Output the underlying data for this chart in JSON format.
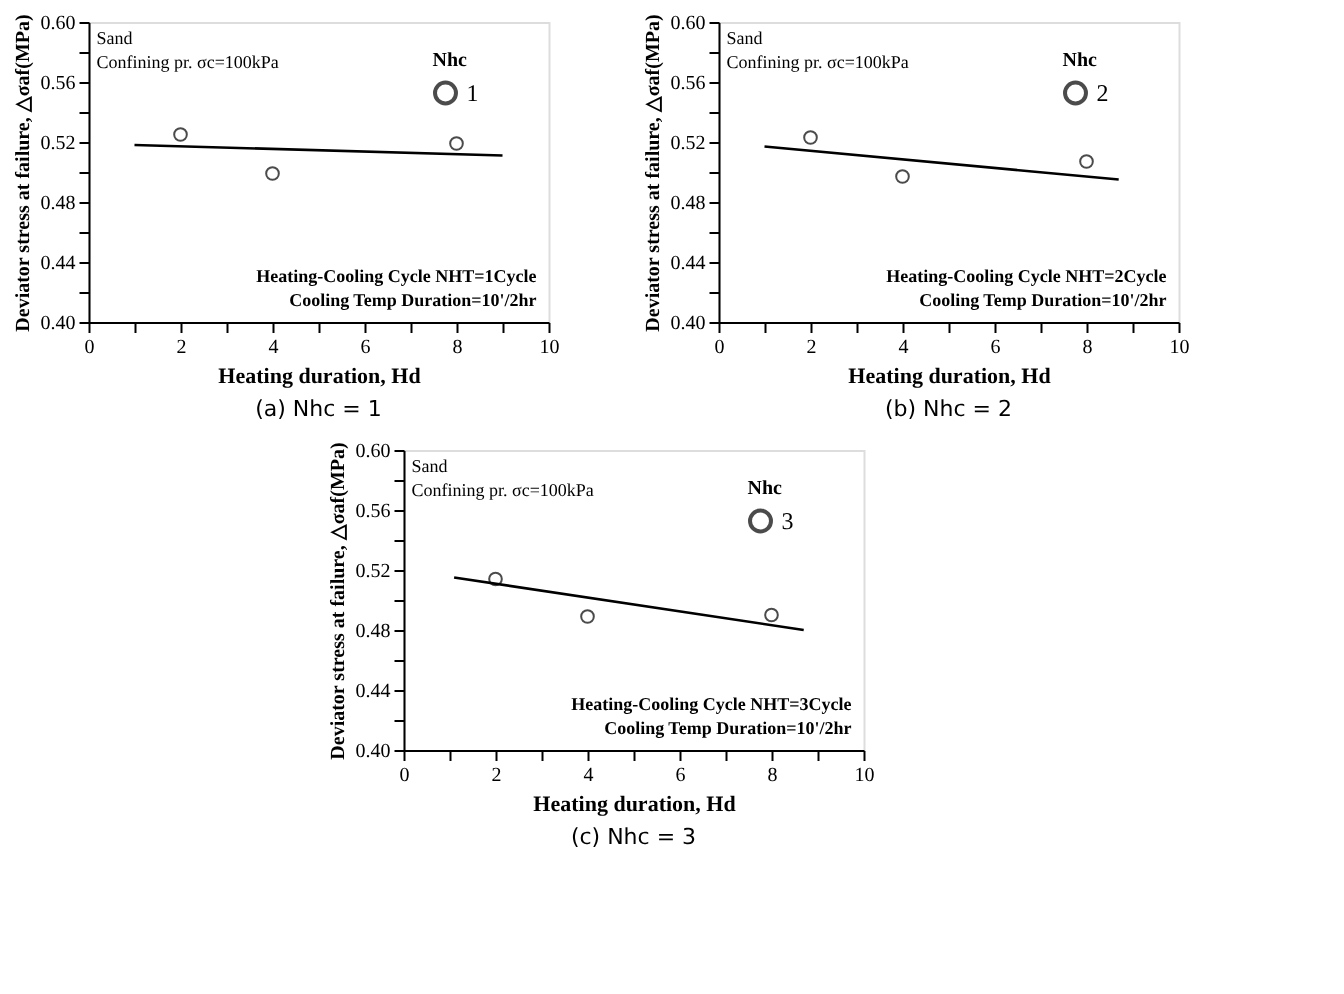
{
  "chart_data": [
    {
      "type": "scatter",
      "title": "(a)  Nhc = 1",
      "xlabel": "Heating duration, Hd",
      "ylabel": "Deviator stress at failure, △σaf(MPa)",
      "legend_title": "Nhc",
      "legend": "top right",
      "grid": false,
      "marker": "circle",
      "xlim": [
        0,
        10
      ],
      "ylim": [
        0.4,
        0.6
      ],
      "xticks": [
        0,
        {
          "value": 1,
          "label": null
        },
        2,
        {
          "value": 3,
          "label": null
        },
        4,
        {
          "value": 5,
          "label": null
        },
        6,
        {
          "value": 7,
          "label": null
        },
        8,
        {
          "value": 9,
          "label": null
        },
        10
      ],
      "yticks": [
        {
          "value": 0.4,
          "label": "0.40"
        },
        {
          "value": 0.42,
          "label": null
        },
        0.44,
        {
          "value": 0.46,
          "label": null
        },
        0.48,
        {
          "value": 0.5,
          "label": null
        },
        0.52,
        {
          "value": 0.54,
          "label": null
        },
        0.56,
        {
          "value": 0.58,
          "label": null
        },
        {
          "value": 0.6,
          "label": "0.60"
        }
      ],
      "annotations": [
        "Sand",
        "Confining pr. σc=100kPa",
        "Heating-Cooling Cycle NHT=1Cycle",
        "Cooling Temp Duration=10'/2hr"
      ],
      "series": [
        {
          "name": "1",
          "color": "#000000",
          "x": [
            2,
            4,
            8
          ],
          "values": [
            0.525,
            0.499,
            0.519
          ]
        },
        {
          "type": "line",
          "marker": "none",
          "color": "#000000",
          "x": [
            1,
            9
          ],
          "values": [
            0.518,
            0.511
          ]
        }
      ]
    },
    {
      "type": "scatter",
      "title": "(b)  Nhc = 2",
      "xlabel": "Heating duration, Hd",
      "ylabel": "Deviator stress at failure, △σaf(MPa)",
      "legend_title": "Nhc",
      "legend": "top right",
      "grid": false,
      "marker": "circle",
      "xlim": [
        0,
        10
      ],
      "ylim": [
        0.4,
        0.6
      ],
      "xticks": [
        0,
        {
          "value": 1,
          "label": null
        },
        2,
        {
          "value": 3,
          "label": null
        },
        4,
        {
          "value": 5,
          "label": null
        },
        6,
        {
          "value": 7,
          "label": null
        },
        8,
        {
          "value": 9,
          "label": null
        },
        10
      ],
      "yticks": [
        {
          "value": 0.4,
          "label": "0.40"
        },
        {
          "value": 0.42,
          "label": null
        },
        0.44,
        {
          "value": 0.46,
          "label": null
        },
        0.48,
        {
          "value": 0.5,
          "label": null
        },
        0.52,
        {
          "value": 0.54,
          "label": null
        },
        0.56,
        {
          "value": 0.58,
          "label": null
        },
        {
          "value": 0.6,
          "label": "0.60"
        }
      ],
      "annotations": [
        "Sand",
        "Confining pr. σc=100kPa",
        "Heating-Cooling Cycle NHT=2Cycle",
        "Cooling Temp Duration=10'/2hr"
      ],
      "series": [
        {
          "name": "2",
          "color": "#000000",
          "x": [
            2,
            4,
            8
          ],
          "values": [
            0.523,
            0.497,
            0.507
          ]
        },
        {
          "type": "line",
          "marker": "none",
          "color": "#000000",
          "x": [
            1,
            8.7
          ],
          "values": [
            0.517,
            0.495
          ]
        }
      ]
    },
    {
      "type": "scatter",
      "title": "(c)  Nhc = 3",
      "xlabel": "Heating duration, Hd",
      "ylabel": "Deviator stress at failure, △σaf(MPa)",
      "legend_title": "Nhc",
      "legend": "top right",
      "grid": false,
      "marker": "circle",
      "xlim": [
        0,
        10
      ],
      "ylim": [
        0.4,
        0.6
      ],
      "xticks": [
        0,
        {
          "value": 1,
          "label": null
        },
        2,
        {
          "value": 3,
          "label": null
        },
        4,
        {
          "value": 5,
          "label": null
        },
        6,
        {
          "value": 7,
          "label": null
        },
        8,
        {
          "value": 9,
          "label": null
        },
        10
      ],
      "yticks": [
        {
          "value": 0.4,
          "label": "0.40"
        },
        {
          "value": 0.42,
          "label": null
        },
        0.44,
        {
          "value": 0.46,
          "label": null
        },
        0.48,
        {
          "value": 0.5,
          "label": null
        },
        0.52,
        {
          "value": 0.54,
          "label": null
        },
        0.56,
        {
          "value": 0.58,
          "label": null
        },
        {
          "value": 0.6,
          "label": "0.60"
        }
      ],
      "annotations": [
        "Sand",
        "Confining pr. σc=100kPa",
        "Heating-Cooling Cycle NHT=3Cycle",
        "Cooling Temp Duration=10'/2hr"
      ],
      "series": [
        {
          "name": "3",
          "color": "#000000",
          "x": [
            2,
            4,
            8
          ],
          "values": [
            0.514,
            0.489,
            0.49
          ]
        },
        {
          "type": "line",
          "marker": "none",
          "color": "#000000",
          "x": [
            1.1,
            8.7
          ],
          "values": [
            0.515,
            0.48
          ]
        }
      ]
    }
  ]
}
